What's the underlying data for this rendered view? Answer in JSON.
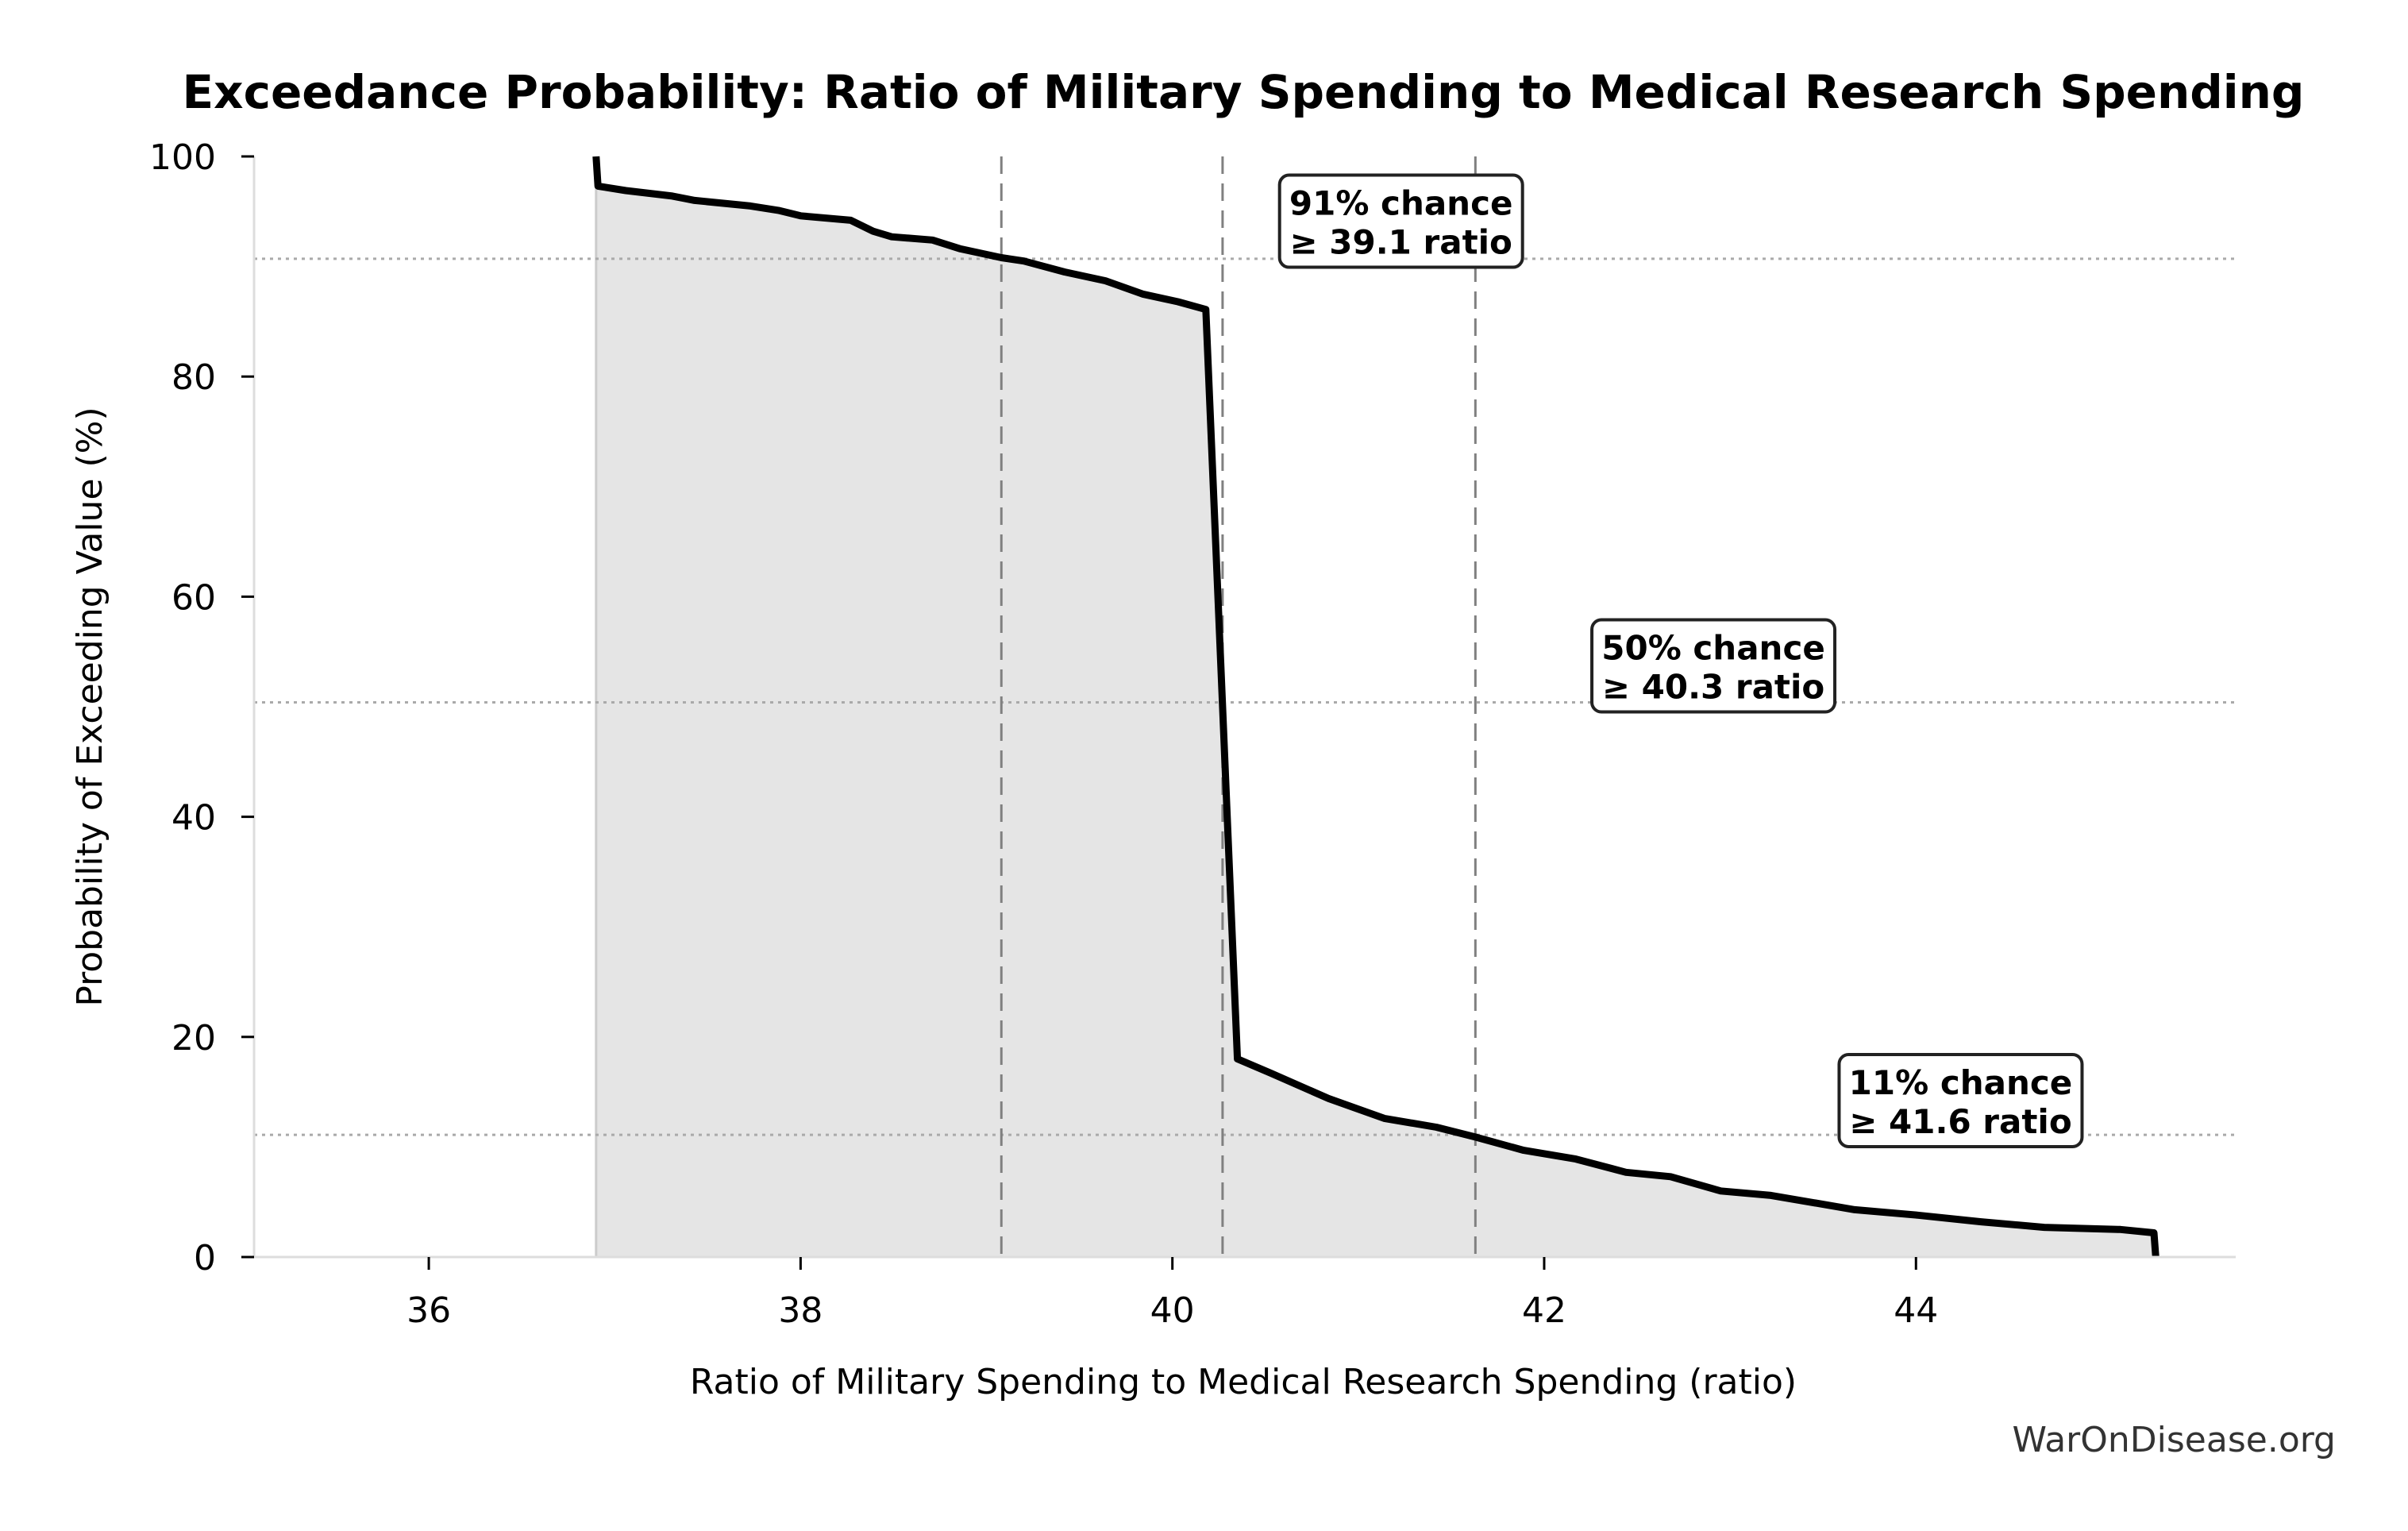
{
  "chart_data": {
    "type": "area",
    "title": "Exceedance Probability: Ratio of Military Spending to Medical Research Spending",
    "xlabel": "Ratio of Military Spending to Medical Research Spending (ratio)",
    "ylabel": "Probability of Exceeding Value (%)",
    "xlim": [
      35.06,
      45.72
    ],
    "ylim": [
      0,
      100
    ],
    "xticks": [
      36,
      38,
      40,
      42,
      44
    ],
    "xtick_labels": [
      "36",
      "38",
      "40",
      "42",
      "44"
    ],
    "yticks": [
      0,
      20,
      40,
      60,
      80,
      100
    ],
    "ytick_labels": [
      "0",
      "20",
      "40",
      "60",
      "80",
      "100"
    ],
    "grid": false,
    "series": [
      {
        "name": "Exceedance probability",
        "color": "#000000",
        "fill_color": "#e5e5e5",
        "x": [
          36.9,
          36.91,
          37.06,
          37.31,
          37.43,
          37.73,
          37.88,
          38.0,
          38.27,
          38.39,
          38.49,
          38.71,
          38.86,
          39.08,
          39.2,
          39.42,
          39.64,
          39.84,
          40.03,
          40.18,
          40.35,
          40.53,
          40.84,
          41.14,
          41.42,
          41.63,
          41.89,
          42.17,
          42.44,
          42.68,
          42.95,
          43.22,
          43.67,
          44.01,
          44.35,
          44.69,
          45.1,
          45.28,
          45.29
        ],
        "y": [
          100,
          97.3,
          96.9,
          96.4,
          96.0,
          95.5,
          95.1,
          94.6,
          94.2,
          93.2,
          92.7,
          92.4,
          91.6,
          90.8,
          90.5,
          89.5,
          88.7,
          87.5,
          86.8,
          86.1,
          18.0,
          16.7,
          14.4,
          12.6,
          11.8,
          10.9,
          9.7,
          8.9,
          7.7,
          7.3,
          6.0,
          5.6,
          4.3,
          3.8,
          3.2,
          2.7,
          2.5,
          2.2,
          0
        ]
      }
    ],
    "reference_lines": [
      {
        "probability": 91,
        "ratio": 39.1,
        "label_line1": "91% chance",
        "label_line2": "≥ 39.1 ratio",
        "label_x": 41.23,
        "label_y": 98.3
      },
      {
        "probability": 50,
        "ratio": 40.3,
        "label_line1": "50% chance",
        "label_line2": "≥ 40.3 ratio",
        "label_x": 42.91,
        "label_y": 57.9
      },
      {
        "probability": 11,
        "ratio": 41.6,
        "label_line1": "11% chance",
        "label_line2": "≥ 41.6 ratio",
        "label_x": 44.24,
        "label_y": 18.4
      }
    ],
    "vertical_lines_x": [
      39.08,
      40.27,
      41.63
    ],
    "horizontal_lines_y": [
      90.7,
      50.4,
      11.1
    ],
    "watermark": "WarOnDisease.org"
  }
}
